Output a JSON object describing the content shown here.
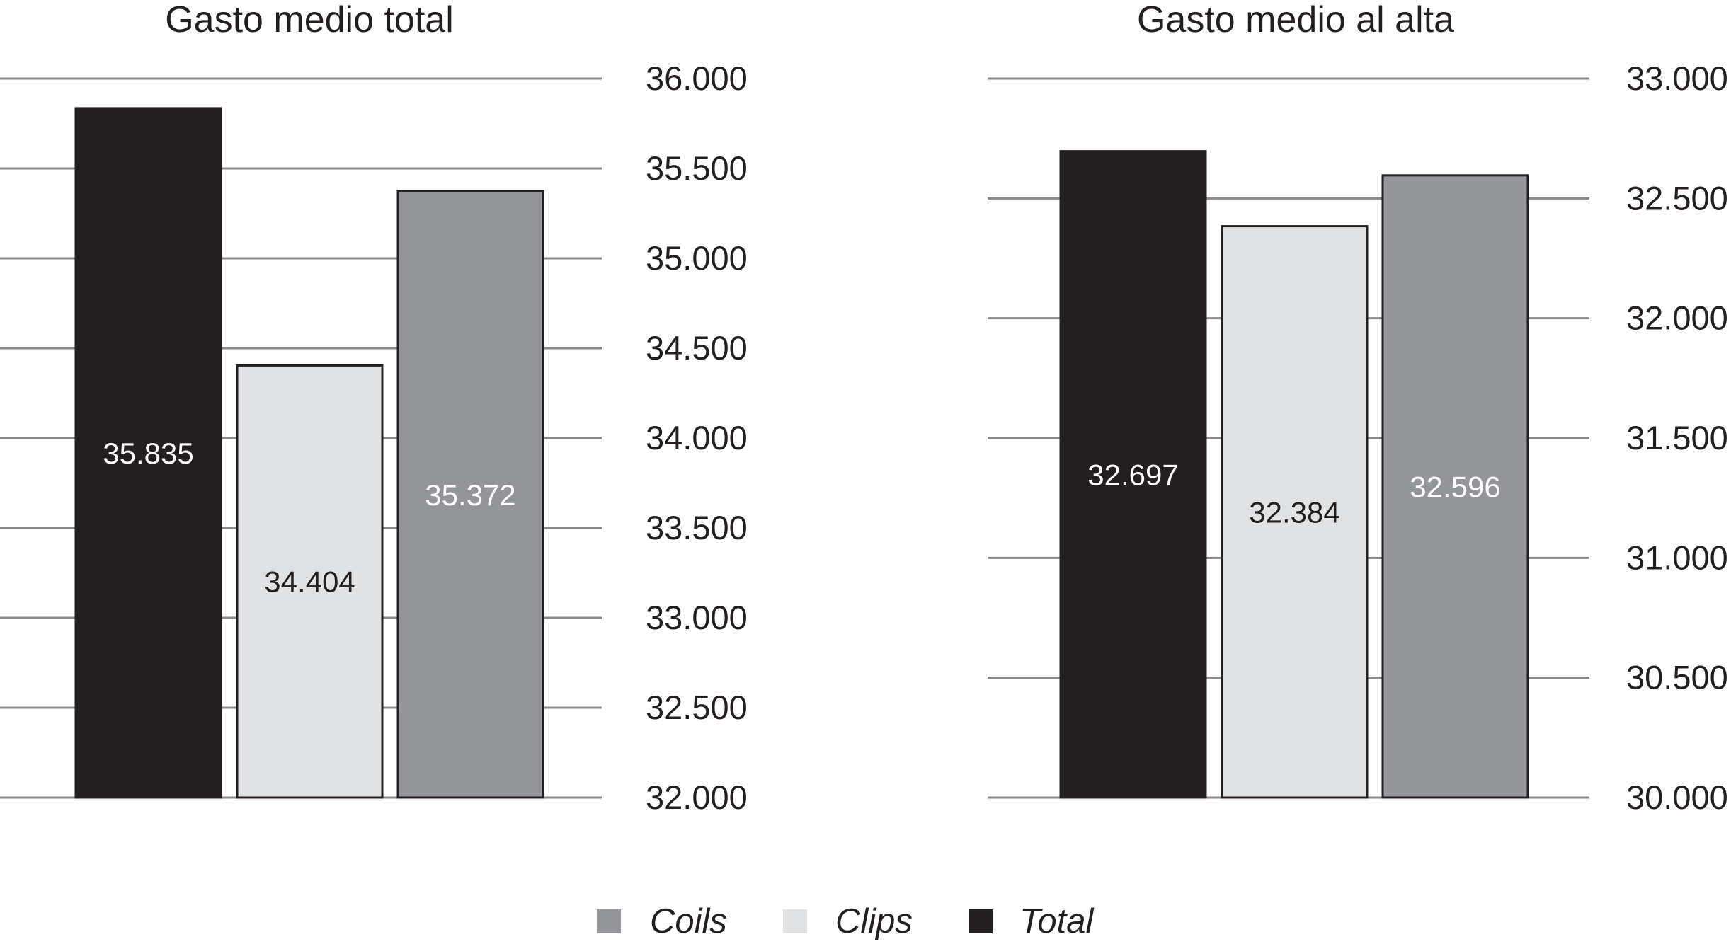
{
  "colors": {
    "Total": "#231f20",
    "Clips": "#e1e2e4",
    "Coils": "#939598",
    "grid": "#8a8a8a",
    "bar_stroke": "#231f20",
    "label_dark": "#231f20",
    "label_light": "#ffffff"
  },
  "chart_data": [
    {
      "type": "bar",
      "title": "Gasto medio total",
      "categories": [
        "Total",
        "Clips",
        "Coils"
      ],
      "values": [
        35835,
        34404,
        35372
      ],
      "value_labels": [
        "35.835",
        "34.404",
        "35.372"
      ],
      "ylim": [
        32000,
        36000
      ],
      "yticks": [
        32000,
        32500,
        33000,
        33500,
        34000,
        34500,
        35000,
        35500,
        36000
      ],
      "ytick_labels": [
        "32.000",
        "32.500",
        "33.000",
        "33.500",
        "34.000",
        "34.500",
        "35.000",
        "35.500",
        "36.000"
      ],
      "y_axis_position": "right",
      "grid": true
    },
    {
      "type": "bar",
      "title": "Gasto medio al alta",
      "categories": [
        "Total",
        "Clips",
        "Coils"
      ],
      "values": [
        32697,
        32384,
        32596
      ],
      "value_labels": [
        "32.697",
        "32.384",
        "32.596"
      ],
      "ylim": [
        30000,
        33000
      ],
      "yticks": [
        30000,
        30500,
        31000,
        31500,
        32000,
        32500,
        33000
      ],
      "ytick_labels": [
        "30.000",
        "30.500",
        "31.000",
        "31.500",
        "32.000",
        "32.500",
        "33.000"
      ],
      "y_axis_position": "right",
      "grid": true
    }
  ],
  "legend": {
    "position": "bottom-center",
    "items": [
      {
        "label": "Coils",
        "color": "#939598"
      },
      {
        "label": "Clips",
        "color": "#e1e2e4"
      },
      {
        "label": "Total",
        "color": "#231f20"
      }
    ]
  }
}
